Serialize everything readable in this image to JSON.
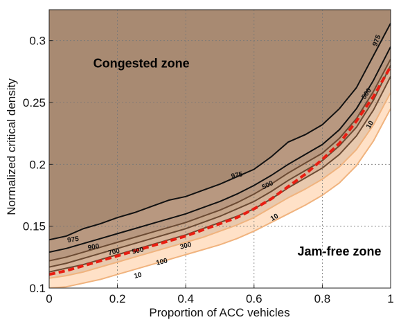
{
  "chart_data": {
    "type": "line",
    "xlabel": "Proportion of ACC vehicles",
    "ylabel": "Normalized critical density",
    "xlim": [
      0,
      1
    ],
    "ylim": [
      0.1,
      0.325
    ],
    "xticks": [
      0,
      0.2,
      0.4,
      0.6,
      0.8,
      1
    ],
    "xtick_labels": [
      "0",
      "0.2",
      "0.4",
      "0.6",
      "0.8",
      "1"
    ],
    "yticks": [
      0.1,
      0.15,
      0.2,
      0.25,
      0.3
    ],
    "ytick_labels": [
      "0.1",
      "0.15",
      "0.2",
      "0.25",
      "0.3"
    ],
    "grid": true,
    "annotations": [
      {
        "text": "Congested zone",
        "x": 0.27,
        "y": 0.281
      },
      {
        "text": "Jam-free zone",
        "x": 0.85,
        "y": 0.129
      }
    ],
    "colors": {
      "congested": "#a88a72",
      "jam_free": "#ffffff",
      "band_25_100": "#ffe1c7",
      "band_100_300": "#e8c9ae",
      "band_300_500": "#d6b59b",
      "band_500_700": "#c7a78c",
      "band_700_975": "#b89880",
      "dark_line": "#111111",
      "mid_line": "#6b4a33",
      "light_line": "#f0b37e",
      "red_line": "#e81e12"
    },
    "series": [
      {
        "name": "975",
        "color": "#111111",
        "x": [
          0,
          0.05,
          0.1,
          0.15,
          0.2,
          0.25,
          0.3,
          0.35,
          0.4,
          0.45,
          0.5,
          0.55,
          0.6,
          0.65,
          0.7,
          0.75,
          0.8,
          0.85,
          0.9,
          0.95,
          1.0
        ],
        "y": [
          0.139,
          0.142,
          0.148,
          0.152,
          0.157,
          0.161,
          0.166,
          0.171,
          0.174,
          0.179,
          0.184,
          0.19,
          0.196,
          0.206,
          0.218,
          0.224,
          0.232,
          0.245,
          0.262,
          0.288,
          0.314
        ]
      },
      {
        "name": "900",
        "color": "#111111",
        "x": [
          0,
          0.05,
          0.1,
          0.15,
          0.2,
          0.25,
          0.3,
          0.35,
          0.4,
          0.45,
          0.5,
          0.55,
          0.6,
          0.65,
          0.7,
          0.75,
          0.8,
          0.85,
          0.9,
          0.95,
          1.0
        ],
        "y": [
          0.129,
          0.132,
          0.136,
          0.14,
          0.144,
          0.148,
          0.152,
          0.156,
          0.16,
          0.165,
          0.17,
          0.176,
          0.183,
          0.191,
          0.2,
          0.208,
          0.216,
          0.228,
          0.245,
          0.268,
          0.295
        ]
      },
      {
        "name": "700",
        "color": "#6b4a33",
        "x": [
          0,
          0.05,
          0.1,
          0.15,
          0.2,
          0.25,
          0.3,
          0.35,
          0.4,
          0.45,
          0.5,
          0.55,
          0.6,
          0.65,
          0.7,
          0.75,
          0.8,
          0.85,
          0.9,
          0.95,
          1.0
        ],
        "y": [
          0.122,
          0.125,
          0.129,
          0.133,
          0.137,
          0.141,
          0.145,
          0.149,
          0.153,
          0.158,
          0.163,
          0.169,
          0.176,
          0.184,
          0.193,
          0.201,
          0.209,
          0.221,
          0.237,
          0.259,
          0.285
        ]
      },
      {
        "name": "500",
        "color": "#6b4a33",
        "x": [
          0,
          0.05,
          0.1,
          0.15,
          0.2,
          0.25,
          0.3,
          0.35,
          0.4,
          0.45,
          0.5,
          0.55,
          0.6,
          0.65,
          0.7,
          0.75,
          0.8,
          0.85,
          0.9,
          0.95,
          1.0
        ],
        "y": [
          0.117,
          0.12,
          0.124,
          0.128,
          0.132,
          0.136,
          0.14,
          0.144,
          0.148,
          0.153,
          0.158,
          0.164,
          0.17,
          0.178,
          0.187,
          0.195,
          0.203,
          0.215,
          0.23,
          0.252,
          0.28
        ]
      },
      {
        "name": "300",
        "color": "#6b4a33",
        "x": [
          0,
          0.05,
          0.1,
          0.15,
          0.2,
          0.25,
          0.3,
          0.35,
          0.4,
          0.45,
          0.5,
          0.55,
          0.6,
          0.65,
          0.7,
          0.75,
          0.8,
          0.85,
          0.9,
          0.95,
          1.0
        ],
        "y": [
          0.113,
          0.116,
          0.119,
          0.123,
          0.127,
          0.131,
          0.135,
          0.139,
          0.143,
          0.148,
          0.153,
          0.158,
          0.164,
          0.172,
          0.181,
          0.189,
          0.197,
          0.208,
          0.223,
          0.244,
          0.271
        ]
      },
      {
        "name": "100",
        "color": "#f0b37e",
        "x": [
          0,
          0.05,
          0.1,
          0.15,
          0.2,
          0.25,
          0.3,
          0.35,
          0.4,
          0.45,
          0.5,
          0.55,
          0.6,
          0.65,
          0.7,
          0.75,
          0.8,
          0.85,
          0.9,
          0.95,
          1.0
        ],
        "y": [
          0.108,
          0.11,
          0.113,
          0.117,
          0.121,
          0.125,
          0.129,
          0.133,
          0.137,
          0.141,
          0.146,
          0.151,
          0.157,
          0.165,
          0.173,
          0.18,
          0.188,
          0.198,
          0.212,
          0.232,
          0.258
        ]
      },
      {
        "name": "10",
        "color": "#f0b37e",
        "x": [
          0,
          0.05,
          0.1,
          0.15,
          0.2,
          0.25,
          0.3,
          0.35,
          0.4,
          0.45,
          0.5,
          0.55,
          0.6,
          0.65,
          0.7,
          0.75,
          0.8,
          0.85,
          0.9,
          0.95,
          1.0
        ],
        "y": [
          0.1,
          0.101,
          0.104,
          0.107,
          0.111,
          0.115,
          0.119,
          0.123,
          0.127,
          0.131,
          0.135,
          0.14,
          0.146,
          0.153,
          0.16,
          0.167,
          0.175,
          0.185,
          0.199,
          0.219,
          0.245
        ]
      },
      {
        "name": "",
        "color": "#e81e12",
        "style": "dashed",
        "x": [
          0,
          0.05,
          0.1,
          0.15,
          0.2,
          0.25,
          0.3,
          0.35,
          0.4,
          0.45,
          0.5,
          0.55,
          0.6,
          0.65,
          0.7,
          0.75,
          0.8,
          0.85,
          0.9,
          0.95,
          1.0
        ],
        "y": [
          0.111,
          0.114,
          0.118,
          0.122,
          0.126,
          0.13,
          0.134,
          0.138,
          0.142,
          0.147,
          0.152,
          0.157,
          0.164,
          0.172,
          0.182,
          0.192,
          0.204,
          0.217,
          0.235,
          0.255,
          0.279
        ]
      }
    ],
    "contour_labels": [
      {
        "text": "975",
        "x": 0.07,
        "y": 0.139,
        "angle": -8
      },
      {
        "text": "975",
        "x": 0.55,
        "y": 0.191,
        "angle": -12
      },
      {
        "text": "975",
        "x": 0.96,
        "y": 0.3,
        "angle": -70
      },
      {
        "text": "900",
        "x": 0.13,
        "y": 0.133,
        "angle": -10
      },
      {
        "text": "700",
        "x": 0.19,
        "y": 0.129,
        "angle": -12
      },
      {
        "text": "500",
        "x": 0.26,
        "y": 0.13,
        "angle": -12
      },
      {
        "text": "500",
        "x": 0.64,
        "y": 0.183,
        "angle": -25
      },
      {
        "text": "500",
        "x": 0.93,
        "y": 0.257,
        "angle": -55
      },
      {
        "text": "300",
        "x": 0.4,
        "y": 0.134,
        "angle": -14
      },
      {
        "text": "100",
        "x": 0.33,
        "y": 0.121,
        "angle": -14
      },
      {
        "text": "10",
        "x": 0.26,
        "y": 0.11,
        "angle": -14
      },
      {
        "text": "10",
        "x": 0.66,
        "y": 0.157,
        "angle": -30
      },
      {
        "text": "10",
        "x": 0.94,
        "y": 0.232,
        "angle": -60
      }
    ]
  }
}
